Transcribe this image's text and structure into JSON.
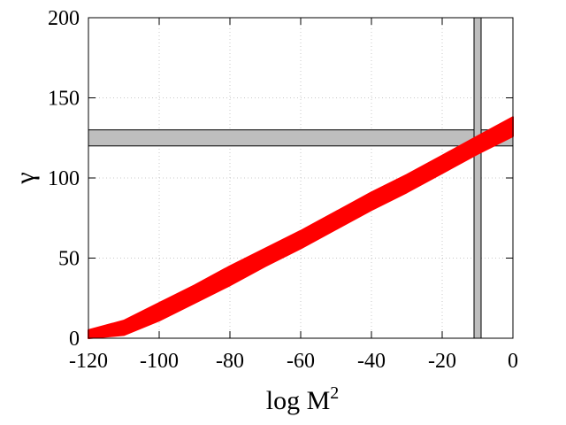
{
  "chart_data": {
    "type": "scatter",
    "title": "",
    "xlabel": "log M",
    "xlabel_superscript": "2",
    "ylabel": "γ",
    "xlim": [
      -120,
      0
    ],
    "ylim": [
      0,
      200
    ],
    "x_ticks": [
      {
        "value": -120,
        "label": "-120"
      },
      {
        "value": -100,
        "label": "-100"
      },
      {
        "value": -80,
        "label": "-80"
      },
      {
        "value": -60,
        "label": "-60"
      },
      {
        "value": -40,
        "label": "-40"
      },
      {
        "value": -20,
        "label": "-20"
      },
      {
        "value": 0,
        "label": "0"
      }
    ],
    "y_ticks": [
      {
        "value": 0,
        "label": "0"
      },
      {
        "value": 50,
        "label": "50"
      },
      {
        "value": 100,
        "label": "100"
      },
      {
        "value": 150,
        "label": "150"
      },
      {
        "value": 200,
        "label": "200"
      }
    ],
    "grid": true,
    "series": [
      {
        "color": "#ff0000",
        "x": [
          -120,
          -110,
          -100,
          -90,
          -80,
          -70,
          -60,
          -50,
          -40,
          -30,
          -20,
          -10,
          0
        ],
        "y_upper": [
          5,
          11,
          22,
          33,
          45,
          56,
          67,
          79,
          91,
          102,
          114,
          126,
          138
        ],
        "y_lower": [
          0,
          2,
          11,
          22,
          33,
          45,
          56,
          68,
          80,
          91,
          103,
          115,
          126
        ]
      }
    ],
    "bands": [
      {
        "orientation": "horizontal",
        "from": 120,
        "to": 130,
        "color": "#bebebe"
      },
      {
        "orientation": "vertical",
        "from": -11,
        "to": -9,
        "color": "#bebebe"
      }
    ]
  }
}
